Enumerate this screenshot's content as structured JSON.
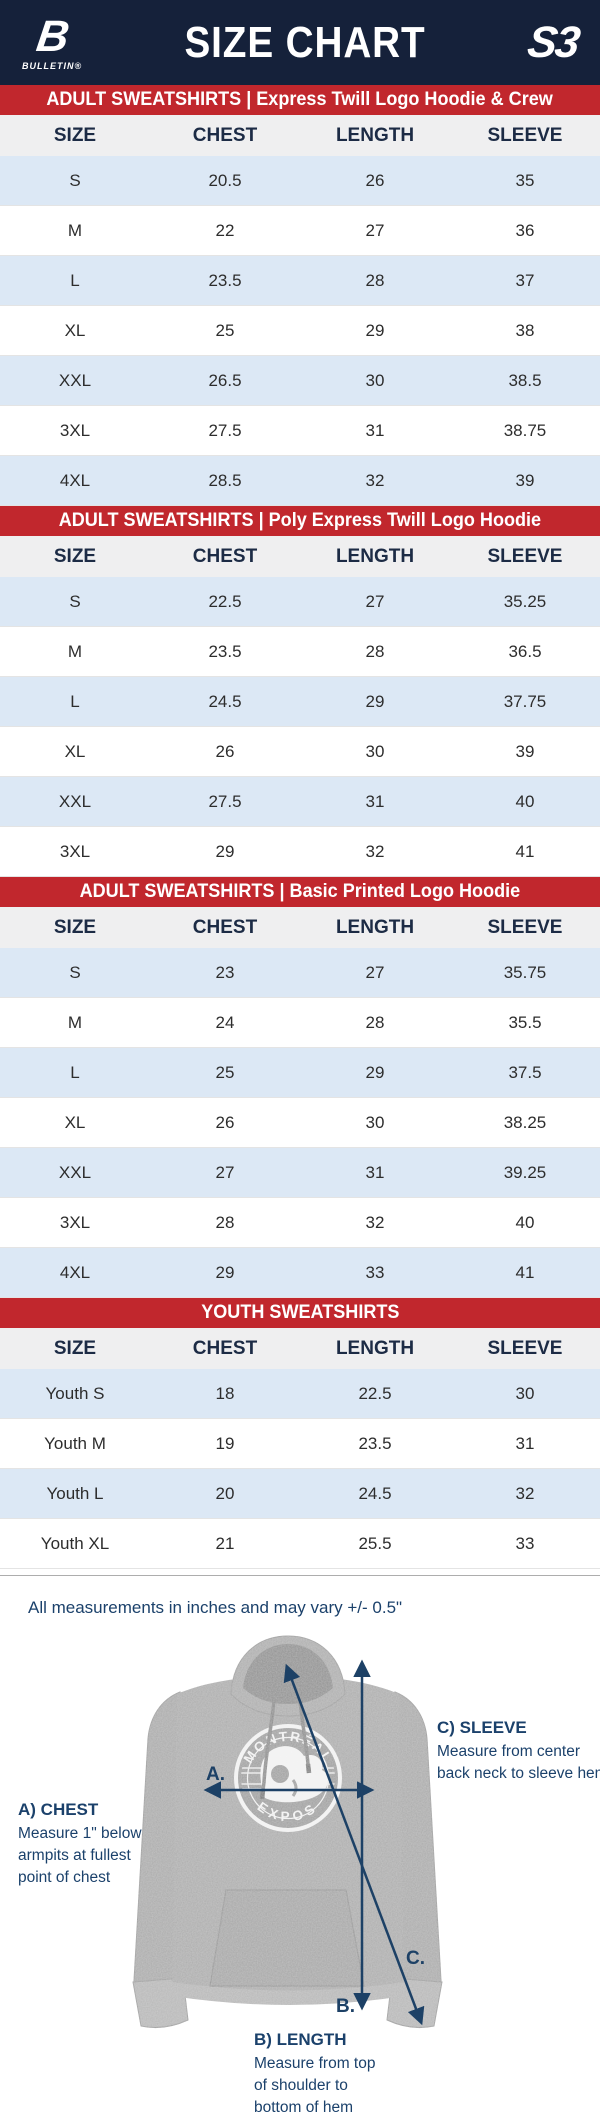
{
  "header": {
    "title": "SIZE CHART",
    "brand_left": {
      "glyph": "B",
      "name": "BULLETIN®"
    },
    "brand_right": {
      "glyph": "S3"
    }
  },
  "columns": [
    "SIZE",
    "CHEST",
    "LENGTH",
    "SLEEVE"
  ],
  "sections": [
    {
      "banner": "ADULT SWEATSHIRTS | Express Twill Logo Hoodie & Crew",
      "rows": [
        [
          "S",
          "20.5",
          "26",
          "35"
        ],
        [
          "M",
          "22",
          "27",
          "36"
        ],
        [
          "L",
          "23.5",
          "28",
          "37"
        ],
        [
          "XL",
          "25",
          "29",
          "38"
        ],
        [
          "XXL",
          "26.5",
          "30",
          "38.5"
        ],
        [
          "3XL",
          "27.5",
          "31",
          "38.75"
        ],
        [
          "4XL",
          "28.5",
          "32",
          "39"
        ]
      ]
    },
    {
      "banner": "ADULT SWEATSHIRTS | Poly Express Twill Logo Hoodie",
      "rows": [
        [
          "S",
          "22.5",
          "27",
          "35.25"
        ],
        [
          "M",
          "23.5",
          "28",
          "36.5"
        ],
        [
          "L",
          "24.5",
          "29",
          "37.75"
        ],
        [
          "XL",
          "26",
          "30",
          "39"
        ],
        [
          "XXL",
          "27.5",
          "31",
          "40"
        ],
        [
          "3XL",
          "29",
          "32",
          "41"
        ]
      ]
    },
    {
      "banner": "ADULT SWEATSHIRTS | Basic Printed Logo Hoodie",
      "rows": [
        [
          "S",
          "23",
          "27",
          "35.75"
        ],
        [
          "M",
          "24",
          "28",
          "35.5"
        ],
        [
          "L",
          "25",
          "29",
          "37.5"
        ],
        [
          "XL",
          "26",
          "30",
          "38.25"
        ],
        [
          "XXL",
          "27",
          "31",
          "39.25"
        ],
        [
          "3XL",
          "28",
          "32",
          "40"
        ],
        [
          "4XL",
          "29",
          "33",
          "41"
        ]
      ]
    },
    {
      "banner": "YOUTH SWEATSHIRTS",
      "rows": [
        [
          "Youth S",
          "18",
          "22.5",
          "30"
        ],
        [
          "Youth M",
          "19",
          "23.5",
          "31"
        ],
        [
          "Youth L",
          "20",
          "24.5",
          "32"
        ],
        [
          "Youth XL",
          "21",
          "25.5",
          "33"
        ]
      ]
    }
  ],
  "note": "All measurements in inches and may vary +/- 0.5\"",
  "diagram": {
    "marker_labels": {
      "a": "A.",
      "b": "B.",
      "c": "C."
    },
    "logo": {
      "top": "MONTRÉAL",
      "bottom": "EXPOS"
    },
    "annotations": {
      "chest": {
        "title": "A) CHEST",
        "lines": [
          "Measure 1\" below",
          "armpits at fullest",
          "point of chest"
        ]
      },
      "length": {
        "title": "B) LENGTH",
        "lines": [
          "Measure from top",
          "of shoulder to",
          "bottom of hem"
        ]
      },
      "sleeve": {
        "title": "C) SLEEVE",
        "lines": [
          "Measure from center",
          "back neck to sleeve hem"
        ]
      }
    }
  },
  "colors": {
    "navy_header": "#15213A",
    "banner_red": "#C1272D",
    "row_blue": "#DCE8F5",
    "head_gray": "#EFEFF0",
    "annotation_navy": "#1B416B",
    "arrow_navy": "#1D4166"
  }
}
